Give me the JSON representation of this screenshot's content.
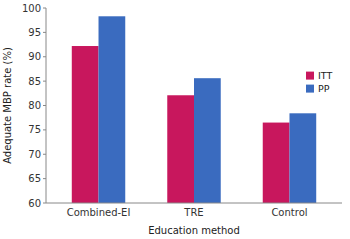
{
  "chart_data": {
    "type": "bar",
    "xlabel": "Education method",
    "ylabel": "Adequate MBP rate (%)",
    "categories": [
      "Combined-EI",
      "TRE",
      "Control"
    ],
    "series": [
      {
        "name": "ITT",
        "color": "#c8175d",
        "values": [
          92.2,
          82.1,
          76.5
        ]
      },
      {
        "name": "PP",
        "color": "#3a6bbf",
        "values": [
          98.3,
          85.6,
          78.4
        ]
      }
    ],
    "ylim": [
      60,
      100
    ],
    "yticks": [
      60,
      65,
      70,
      75,
      80,
      85,
      90,
      95,
      100
    ],
    "legend": "right",
    "grid": false
  }
}
